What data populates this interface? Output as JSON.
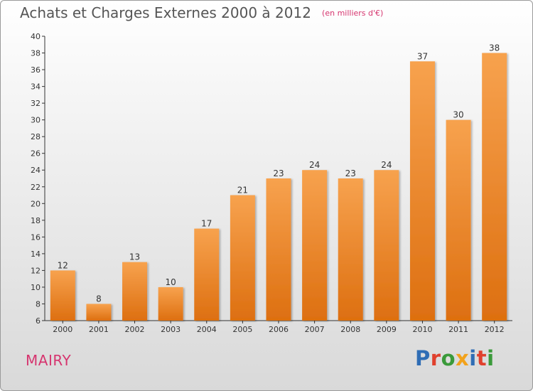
{
  "header": {
    "title": "Achats et Charges Externes 2000 à 2012",
    "subtitle": "(en milliers d'€)"
  },
  "footer": {
    "town": "MAIRY",
    "logo_text": "Proxiti",
    "logo_colors": [
      "#2f6db5",
      "#e0402d",
      "#3a9a3a",
      "#f2a21b",
      "#2f6db5",
      "#e0402d",
      "#3a9a3a"
    ]
  },
  "colors": {
    "bar_top": "#f7a24e",
    "bar_bottom": "#dd6f10",
    "accent": "#d6356f"
  },
  "chart_data": {
    "type": "bar",
    "title": "Achats et Charges Externes 2000 à 2012",
    "subtitle": "(en milliers d'€)",
    "categories": [
      "2000",
      "2001",
      "2002",
      "2003",
      "2004",
      "2005",
      "2006",
      "2007",
      "2008",
      "2009",
      "2010",
      "2011",
      "2012"
    ],
    "values": [
      12,
      8,
      13,
      10,
      17,
      21,
      23,
      24,
      23,
      24,
      37,
      30,
      38
    ],
    "ylim": [
      6,
      40
    ],
    "yticks": [
      6,
      8,
      10,
      12,
      14,
      16,
      18,
      20,
      22,
      24,
      26,
      28,
      30,
      32,
      34,
      36,
      38,
      40
    ],
    "grid": false,
    "data_labels": true
  }
}
